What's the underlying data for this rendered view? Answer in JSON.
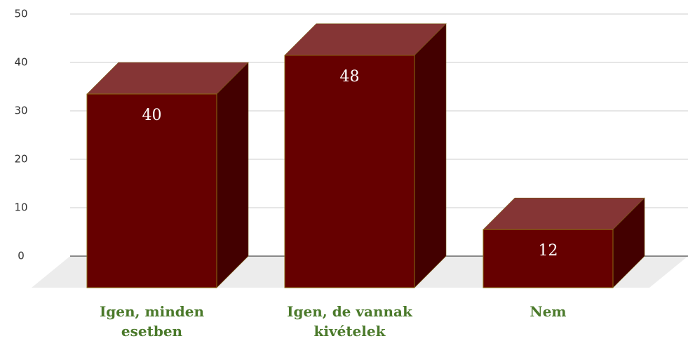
{
  "chart_data": {
    "type": "bar3d",
    "categories": [
      "Igen, minden esetben",
      "Igen, de vannak kivételek",
      "Nem"
    ],
    "values": [
      40,
      48,
      12
    ],
    "color": "#660000",
    "ylim": [
      0,
      50
    ],
    "yticks": [
      0,
      10,
      20,
      30,
      40,
      50
    ],
    "grid": true
  }
}
